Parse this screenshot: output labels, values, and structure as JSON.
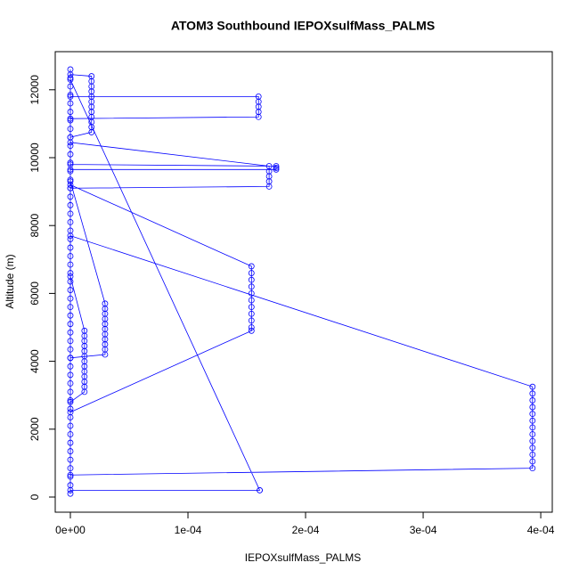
{
  "chart_data": {
    "type": "scatter",
    "title": "ATOM3 Southbound IEPOXsulfMass_PALMS",
    "x_label": "IEPOXsulfMass_PALMS",
    "y_label": "Altitude (m)",
    "color": "#0000ff",
    "xlim": [
      -1.288e-05,
      0.0004098
    ],
    "ylim": [
      -446,
      13123
    ],
    "xticks": [
      {
        "value": 0,
        "label": "0e+00"
      },
      {
        "value": 0.0001,
        "label": "1e-04"
      },
      {
        "value": 0.0002,
        "label": "2e-04"
      },
      {
        "value": 0.0003,
        "label": "3e-04"
      },
      {
        "value": 0.0004,
        "label": "4e-04"
      }
    ],
    "yticks": [
      0,
      2000,
      4000,
      6000,
      8000,
      10000,
      12000
    ],
    "x": [
      0,
      0,
      0,
      0,
      0,
      0,
      0,
      0,
      0,
      0,
      0,
      0,
      0,
      0,
      0,
      0,
      0,
      0,
      0,
      0,
      0,
      0,
      0,
      0,
      0,
      0,
      0,
      0,
      0,
      0,
      0,
      0,
      0,
      0,
      0,
      0,
      0,
      0,
      0,
      0,
      0,
      0,
      0,
      0,
      0,
      0,
      0,
      0,
      0,
      0,
      0,
      0,
      1.8e-05,
      1.8e-05,
      1.8e-05,
      1.8e-05,
      1.8e-05,
      1.8e-05,
      1.8e-05,
      1.8e-05,
      1.8e-05,
      1.8e-05,
      1.8e-05,
      1.8e-05,
      0,
      0,
      0.00016,
      0.00016,
      0.00016,
      0.00016,
      0.00016,
      0,
      0,
      0.000169,
      0.000169,
      0.000169,
      0.000169,
      0.000169,
      0,
      0,
      0.000175,
      0.000175,
      0.000175,
      0,
      0,
      0.000161,
      0.000161,
      0,
      0,
      0.000154,
      0.000154,
      0.000154,
      0.000154,
      0.000154,
      0.000154,
      0.000154,
      0.000154,
      0.000154,
      0.000154,
      0.000154,
      0,
      0,
      0.000393,
      0.000393,
      0.000393,
      0.000393,
      0.000393,
      0.000393,
      0.000393,
      0.000393,
      0.000393,
      0.000393,
      0.000393,
      0.000393,
      0.000393,
      0,
      0,
      2.95e-05,
      2.95e-05,
      2.95e-05,
      2.95e-05,
      2.95e-05,
      2.95e-05,
      2.95e-05,
      2.95e-05,
      2.95e-05,
      2.95e-05,
      2.95e-05,
      0,
      0,
      1.2e-05,
      1.2e-05,
      1.2e-05,
      1.2e-05,
      1.2e-05,
      1.2e-05,
      1.2e-05,
      1.2e-05,
      1.2e-05,
      1.2e-05,
      1.2e-05,
      1.2e-05,
      1.2e-05,
      0
    ],
    "values": [
      12600,
      12350,
      12100,
      11850,
      11600,
      11350,
      11100,
      10850,
      10600,
      10350,
      10100,
      9850,
      9600,
      9350,
      9100,
      8850,
      8600,
      8350,
      8100,
      7850,
      7600,
      7350,
      7100,
      6850,
      6600,
      6350,
      6100,
      5850,
      5600,
      5350,
      5100,
      4850,
      4600,
      4350,
      4100,
      3850,
      3600,
      3350,
      3100,
      2850,
      2600,
      2350,
      2100,
      1850,
      1600,
      1350,
      1100,
      850,
      600,
      350,
      100,
      12450,
      12400,
      12250,
      12100,
      11950,
      11800,
      11650,
      11500,
      11350,
      11200,
      11050,
      10900,
      10750,
      10600,
      11800,
      11800,
      11650,
      11500,
      11350,
      11200,
      11150,
      10450,
      9750,
      9600,
      9450,
      9300,
      9150,
      9100,
      9800,
      9750,
      9700,
      9650,
      9650,
      12300,
      200,
      200,
      200,
      9200,
      6800,
      6600,
      6400,
      6200,
      6000,
      5800,
      5600,
      5400,
      5200,
      5000,
      4900,
      2500,
      7700,
      3250,
      3050,
      2850,
      2650,
      2450,
      2250,
      2050,
      1850,
      1650,
      1450,
      1250,
      1050,
      850,
      650,
      9300,
      5700,
      5550,
      5400,
      5250,
      5100,
      4950,
      4800,
      4650,
      4500,
      4350,
      4200,
      4100,
      6500,
      4900,
      4750,
      4600,
      4450,
      4300,
      4150,
      4000,
      3850,
      3700,
      3550,
      3400,
      3250,
      3100,
      2800
    ]
  }
}
